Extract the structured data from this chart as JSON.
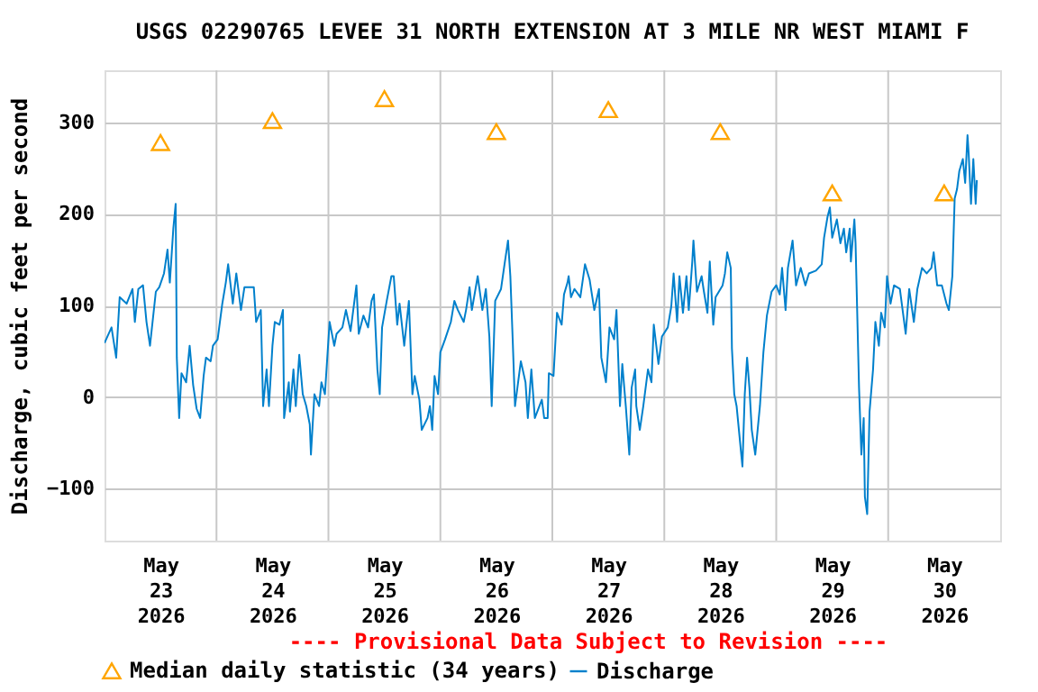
{
  "chart_data": {
    "type": "line",
    "title": "USGS 02290765 LEVEE 31 NORTH EXTENSION AT 3 MILE NR WEST MIAMI F",
    "ylabel": "Discharge, cubic feet per second",
    "annotations": [
      "---- Provisional Data Subject to Revision ----"
    ],
    "xlim": [
      "2026-05-23T00:00",
      "2026-05-31T00:00"
    ],
    "xticks": [
      {
        "value": "2026-05-23T12:00",
        "label": "May\n23\n2026"
      },
      {
        "value": "2026-05-24T00:00",
        "label": null
      },
      {
        "value": "2026-05-24T12:00",
        "label": "May\n24\n2026"
      },
      {
        "value": "2026-05-25T00:00",
        "label": null
      },
      {
        "value": "2026-05-25T12:00",
        "label": "May\n25\n2026"
      },
      {
        "value": "2026-05-26T00:00",
        "label": null
      },
      {
        "value": "2026-05-26T12:00",
        "label": "May\n26\n2026"
      },
      {
        "value": "2026-05-27T00:00",
        "label": null
      },
      {
        "value": "2026-05-27T12:00",
        "label": "May\n27\n2026"
      },
      {
        "value": "2026-05-28T00:00",
        "label": null
      },
      {
        "value": "2026-05-28T12:00",
        "label": "May\n28\n2026"
      },
      {
        "value": "2026-05-29T00:00",
        "label": null
      },
      {
        "value": "2026-05-29T12:00",
        "label": "May\n29\n2026"
      },
      {
        "value": "2026-05-30T00:00",
        "label": null
      },
      {
        "value": "2026-05-30T12:00",
        "label": "May\n30\n2026"
      }
    ],
    "ylim": [
      -157,
      357
    ],
    "yticks": [
      -100,
      0,
      100,
      200,
      300
    ],
    "grid": true,
    "legend": "bottom",
    "series": [
      {
        "name": "Median daily statistic (34 years)",
        "type": "scatter",
        "marker": "triangle",
        "color": "#ffa500",
        "x": [
          "2026-05-23T12:00",
          "2026-05-24T12:00",
          "2026-05-25T12:00",
          "2026-05-26T12:00",
          "2026-05-27T12:00",
          "2026-05-28T12:00",
          "2026-05-29T12:00",
          "2026-05-30T12:00"
        ],
        "values": [
          278,
          302,
          326,
          290,
          314,
          290,
          223,
          223
        ]
      },
      {
        "name": "Discharge",
        "type": "line",
        "color": "#0080cc",
        "x": [
          "2026-05-23T00:00",
          "2026-05-23T01:30",
          "2026-05-23T02:30",
          "2026-05-23T03:15",
          "2026-05-23T04:45",
          "2026-05-23T06:00",
          "2026-05-23T06:30",
          "2026-05-23T07:15",
          "2026-05-23T08:15",
          "2026-05-23T09:00",
          "2026-05-23T09:45",
          "2026-05-23T11:00",
          "2026-05-23T11:45",
          "2026-05-23T12:45",
          "2026-05-23T13:30",
          "2026-05-23T14:00",
          "2026-05-23T14:45",
          "2026-05-23T15:15",
          "2026-05-23T15:30",
          "2026-05-23T16:00",
          "2026-05-23T16:30",
          "2026-05-23T17:30",
          "2026-05-23T18:15",
          "2026-05-23T19:00",
          "2026-05-23T19:45",
          "2026-05-23T20:30",
          "2026-05-23T21:15",
          "2026-05-23T21:45",
          "2026-05-23T22:45",
          "2026-05-23T23:15",
          "2026-05-24T00:15",
          "2026-05-24T01:15",
          "2026-05-24T02:00",
          "2026-05-24T02:30",
          "2026-05-24T03:30",
          "2026-05-24T04:15",
          "2026-05-24T05:15",
          "2026-05-24T06:00",
          "2026-05-24T08:00",
          "2026-05-24T08:30",
          "2026-05-24T09:30",
          "2026-05-24T10:00",
          "2026-05-24T10:45",
          "2026-05-24T11:15",
          "2026-05-24T12:00",
          "2026-05-24T12:30",
          "2026-05-24T13:30",
          "2026-05-24T14:15",
          "2026-05-24T14:30",
          "2026-05-24T15:30",
          "2026-05-24T15:45",
          "2026-05-24T16:30",
          "2026-05-24T17:00",
          "2026-05-24T17:45",
          "2026-05-24T18:30",
          "2026-05-24T19:15",
          "2026-05-24T20:00",
          "2026-05-24T20:15",
          "2026-05-24T21:00",
          "2026-05-24T22:00",
          "2026-05-24T22:30",
          "2026-05-24T23:15",
          "2026-05-25T00:15",
          "2026-05-25T01:15",
          "2026-05-25T01:45",
          "2026-05-25T03:00",
          "2026-05-25T03:45",
          "2026-05-25T04:45",
          "2026-05-25T06:00",
          "2026-05-25T06:30",
          "2026-05-25T07:30",
          "2026-05-25T08:30",
          "2026-05-25T09:15",
          "2026-05-25T09:45",
          "2026-05-25T10:30",
          "2026-05-25T11:00",
          "2026-05-25T11:30",
          "2026-05-25T12:30",
          "2026-05-25T13:30",
          "2026-05-25T14:00",
          "2026-05-25T14:45",
          "2026-05-25T15:15",
          "2026-05-25T16:15",
          "2026-05-25T17:15",
          "2026-05-25T18:00",
          "2026-05-25T18:30",
          "2026-05-25T19:30",
          "2026-05-25T20:00",
          "2026-05-25T21:15",
          "2026-05-25T21:45",
          "2026-05-25T22:15",
          "2026-05-25T22:45",
          "2026-05-25T23:30",
          "2026-05-26T00:00",
          "2026-05-26T01:00",
          "2026-05-26T02:15",
          "2026-05-26T03:00",
          "2026-05-26T03:45",
          "2026-05-26T05:00",
          "2026-05-26T05:30",
          "2026-05-26T06:15",
          "2026-05-26T06:45",
          "2026-05-26T08:00",
          "2026-05-26T09:00",
          "2026-05-26T09:45",
          "2026-05-26T10:30",
          "2026-05-26T11:00",
          "2026-05-26T11:45",
          "2026-05-26T13:00",
          "2026-05-26T13:45",
          "2026-05-26T14:30",
          "2026-05-26T15:00",
          "2026-05-26T15:30",
          "2026-05-26T16:00",
          "2026-05-26T17:15",
          "2026-05-26T18:15",
          "2026-05-26T18:45",
          "2026-05-26T19:30",
          "2026-05-26T20:15",
          "2026-05-26T21:45",
          "2026-05-26T22:15",
          "2026-05-26T23:00",
          "2026-05-26T23:15",
          "2026-05-27T00:15",
          "2026-05-27T01:00",
          "2026-05-27T02:00",
          "2026-05-27T02:30",
          "2026-05-27T03:15",
          "2026-05-27T03:30",
          "2026-05-27T04:00",
          "2026-05-27T04:45",
          "2026-05-27T06:00",
          "2026-05-27T07:00",
          "2026-05-27T08:00",
          "2026-05-27T09:00",
          "2026-05-27T10:00",
          "2026-05-27T10:30",
          "2026-05-27T11:30",
          "2026-05-27T12:15",
          "2026-05-27T13:15",
          "2026-05-27T13:45",
          "2026-05-27T14:30",
          "2026-05-27T15:00",
          "2026-05-27T15:45",
          "2026-05-27T16:30",
          "2026-05-27T17:00",
          "2026-05-27T17:45",
          "2026-05-27T18:00",
          "2026-05-27T18:45",
          "2026-05-27T19:30",
          "2026-05-27T20:30",
          "2026-05-27T21:15",
          "2026-05-27T21:45",
          "2026-05-27T22:45",
          "2026-05-27T23:30",
          "2026-05-28T00:45",
          "2026-05-28T01:30",
          "2026-05-28T02:00",
          "2026-05-28T02:45",
          "2026-05-28T03:15",
          "2026-05-28T04:00",
          "2026-05-28T04:45",
          "2026-05-28T05:15",
          "2026-05-28T06:00",
          "2026-05-28T06:15",
          "2026-05-28T07:00",
          "2026-05-28T08:00",
          "2026-05-28T08:30",
          "2026-05-28T09:15",
          "2026-05-28T09:45",
          "2026-05-28T10:30",
          "2026-05-28T11:00",
          "2026-05-28T12:30",
          "2026-05-28T13:00",
          "2026-05-28T13:30",
          "2026-05-28T14:15",
          "2026-05-28T14:30",
          "2026-05-28T15:00",
          "2026-05-28T15:30",
          "2026-05-28T16:45",
          "2026-05-28T17:15",
          "2026-05-28T17:45",
          "2026-05-28T18:15",
          "2026-05-28T18:45",
          "2026-05-28T19:30",
          "2026-05-28T20:30",
          "2026-05-28T21:15",
          "2026-05-28T22:00",
          "2026-05-28T23:00",
          "2026-05-29T00:00",
          "2026-05-29T00:45",
          "2026-05-29T01:15",
          "2026-05-29T02:00",
          "2026-05-29T02:30",
          "2026-05-29T03:30",
          "2026-05-29T04:15",
          "2026-05-29T05:15",
          "2026-05-29T06:15",
          "2026-05-29T07:00",
          "2026-05-29T08:30",
          "2026-05-29T09:45",
          "2026-05-29T10:15",
          "2026-05-29T11:00",
          "2026-05-29T11:30",
          "2026-05-29T12:00",
          "2026-05-29T13:00",
          "2026-05-29T13:45",
          "2026-05-29T14:30",
          "2026-05-29T15:00",
          "2026-05-29T15:45",
          "2026-05-29T16:00",
          "2026-05-29T16:45",
          "2026-05-29T17:00",
          "2026-05-29T17:45",
          "2026-05-29T18:15",
          "2026-05-29T18:45",
          "2026-05-29T19:00",
          "2026-05-29T19:30",
          "2026-05-29T20:00",
          "2026-05-29T20:45",
          "2026-05-29T21:15",
          "2026-05-29T22:00",
          "2026-05-29T22:30",
          "2026-05-29T23:15",
          "2026-05-29T23:45",
          "2026-05-30T00:30",
          "2026-05-30T01:15",
          "2026-05-30T02:30",
          "2026-05-30T03:45",
          "2026-05-30T04:30",
          "2026-05-30T05:30",
          "2026-05-30T06:15",
          "2026-05-30T07:15",
          "2026-05-30T08:15",
          "2026-05-30T09:15",
          "2026-05-30T09:45",
          "2026-05-30T10:30",
          "2026-05-30T11:30",
          "2026-05-30T12:30",
          "2026-05-30T13:00",
          "2026-05-30T13:45",
          "2026-05-30T14:15",
          "2026-05-30T14:45",
          "2026-05-30T15:15",
          "2026-05-30T16:00",
          "2026-05-30T16:30",
          "2026-05-30T17:00",
          "2026-05-30T17:15",
          "2026-05-30T17:45",
          "2026-05-30T18:15",
          "2026-05-30T18:45",
          "2026-05-30T19:00"
        ],
        "values": [
          59,
          76,
          43,
          109,
          102,
          118,
          82,
          118,
          122,
          82,
          56,
          115,
          120,
          135,
          161,
          125,
          184,
          211,
          43,
          -23,
          26,
          16,
          56,
          13,
          -13,
          -23,
          23,
          43,
          39,
          56,
          63,
          102,
          125,
          145,
          102,
          135,
          95,
          120,
          120,
          82,
          95,
          -10,
          30,
          -10,
          56,
          82,
          79,
          95,
          -23,
          16,
          -16,
          30,
          -10,
          46,
          3,
          -10,
          -30,
          -63,
          3,
          -10,
          16,
          3,
          82,
          56,
          69,
          76,
          95,
          72,
          122,
          69,
          89,
          76,
          105,
          112,
          30,
          3,
          76,
          105,
          132,
          132,
          79,
          102,
          56,
          105,
          3,
          23,
          -3,
          -36,
          -23,
          -10,
          -36,
          23,
          3,
          49,
          63,
          82,
          105,
          95,
          82,
          95,
          120,
          95,
          132,
          95,
          118,
          66,
          -10,
          105,
          118,
          145,
          171,
          132,
          63,
          -10,
          39,
          16,
          -23,
          30,
          -23,
          -3,
          -23,
          -23,
          26,
          23,
          92,
          79,
          112,
          125,
          132,
          109,
          118,
          109,
          145,
          128,
          95,
          118,
          43,
          16,
          76,
          63,
          95,
          -10,
          36,
          -10,
          -63,
          10,
          30,
          -10,
          -36,
          -10,
          30,
          16,
          79,
          36,
          66,
          76,
          99,
          135,
          82,
          132,
          92,
          132,
          95,
          148,
          171,
          115,
          132,
          115,
          92,
          148,
          79,
          109,
          122,
          135,
          158,
          141,
          53,
          3,
          -10,
          -76,
          3,
          43,
          10,
          -36,
          -63,
          -10,
          49,
          89,
          115,
          122,
          112,
          141,
          95,
          141,
          171,
          122,
          141,
          122,
          135,
          138,
          145,
          174,
          197,
          207,
          174,
          194,
          168,
          184,
          158,
          184,
          148,
          194,
          168,
          10,
          -63,
          -23,
          -109,
          -128,
          -16,
          30,
          82,
          56,
          92,
          76,
          132,
          102,
          122,
          118,
          69,
          118,
          82,
          118,
          141,
          135,
          141,
          158,
          122,
          122,
          102,
          95,
          132,
          217,
          227,
          247,
          260,
          234,
          286,
          266,
          211,
          260,
          211,
          237
        ]
      }
    ]
  }
}
